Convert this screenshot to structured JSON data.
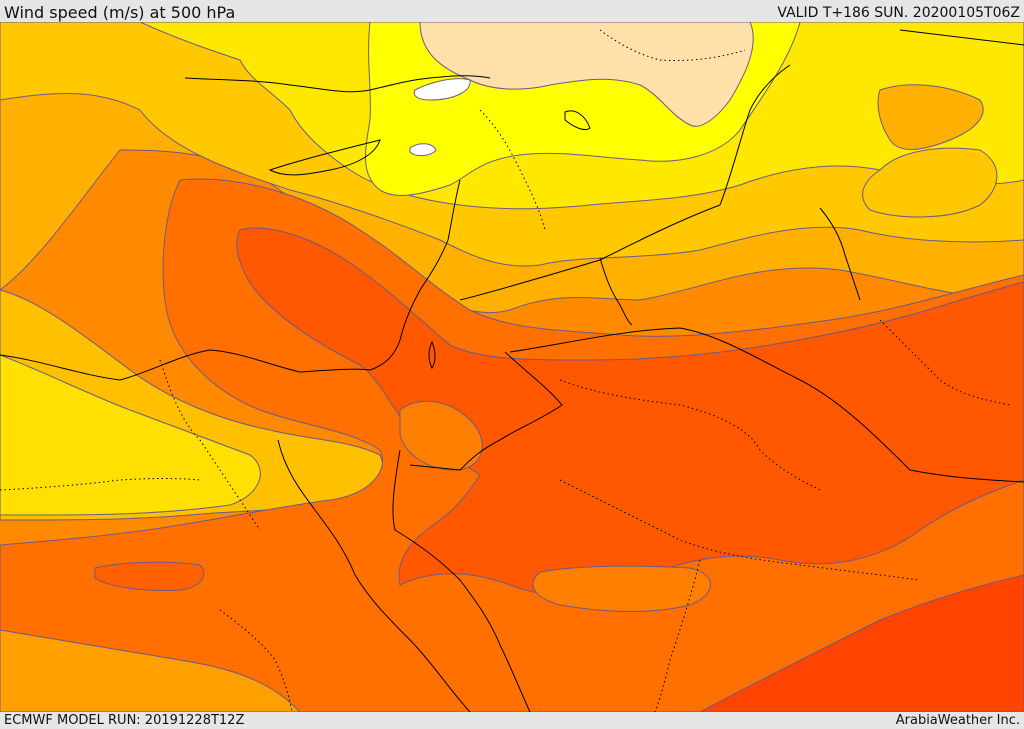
{
  "header": {
    "title": "Wind speed (m/s) at 500 hPa",
    "valid": "VALID T+186 SUN. 20200105T06Z"
  },
  "footer": {
    "model_run": "ECMWF MODEL RUN: 20191228T12Z",
    "credit": "ArabiaWeather Inc."
  },
  "map": {
    "field": "wind speed",
    "level": "500 hPa",
    "palette": [
      "#ffffff",
      "#ffe0a8",
      "#ffff00",
      "#ffe000",
      "#ffc000",
      "#ffa500",
      "#ff8000",
      "#ff6000",
      "#ff4400"
    ]
  }
}
